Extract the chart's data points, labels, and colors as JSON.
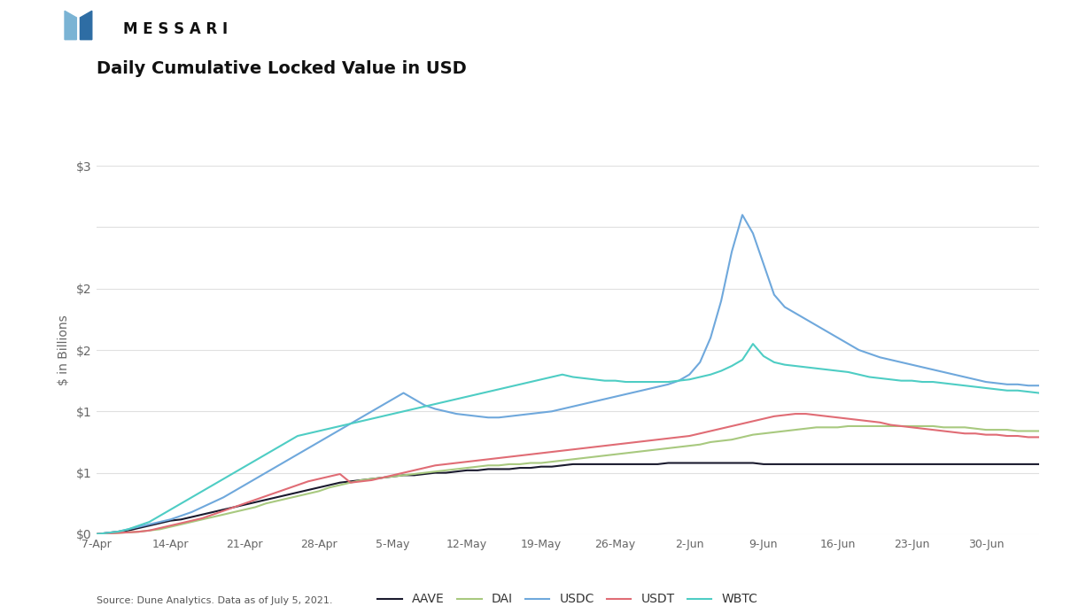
{
  "title": "Daily Cumulative Locked Value in USD",
  "ylabel": "$ in Billions",
  "source_text": "Source: Dune Analytics. Data as of July 5, 2021.",
  "messari_text": "M E S S A R I",
  "x_labels": [
    "7-Apr",
    "14-Apr",
    "21-Apr",
    "28-Apr",
    "5-May",
    "12-May",
    "19-May",
    "26-May",
    "2-Jun",
    "9-Jun",
    "16-Jun",
    "23-Jun",
    "30-Jun"
  ],
  "x_tick_positions": [
    0,
    7,
    14,
    21,
    28,
    35,
    42,
    49,
    56,
    63,
    70,
    77,
    84
  ],
  "colors": {
    "AAVE": "#1a1a2e",
    "DAI": "#a8c97f",
    "USDC": "#6fa8dc",
    "USDT": "#e06c75",
    "WBTC": "#4ecdc4"
  },
  "background_color": "#ffffff",
  "grid_color": "#e0e0e0",
  "ytick_vals": [
    0,
    0.5,
    1.0,
    1.5,
    2.0,
    2.5,
    3.0
  ],
  "ytick_labels": [
    "$0",
    "$1",
    "$1",
    "$2",
    "$2",
    "",
    "$3"
  ],
  "logo_color_light": "#7ab3d4",
  "logo_color_dark": "#2e6da4",
  "series": {
    "AAVE": [
      0.0,
      0.01,
      0.02,
      0.03,
      0.05,
      0.07,
      0.09,
      0.11,
      0.12,
      0.14,
      0.16,
      0.18,
      0.2,
      0.22,
      0.24,
      0.26,
      0.28,
      0.3,
      0.32,
      0.34,
      0.36,
      0.38,
      0.4,
      0.42,
      0.43,
      0.44,
      0.45,
      0.46,
      0.47,
      0.48,
      0.48,
      0.49,
      0.5,
      0.5,
      0.51,
      0.52,
      0.52,
      0.53,
      0.53,
      0.53,
      0.54,
      0.54,
      0.55,
      0.55,
      0.56,
      0.57,
      0.57,
      0.57,
      0.57,
      0.57,
      0.57,
      0.57,
      0.57,
      0.57,
      0.58,
      0.58,
      0.58,
      0.58,
      0.58,
      0.58,
      0.58,
      0.58,
      0.58,
      0.57,
      0.57,
      0.57,
      0.57,
      0.57,
      0.57,
      0.57,
      0.57,
      0.57,
      0.57,
      0.57,
      0.57,
      0.57,
      0.57,
      0.57,
      0.57,
      0.57,
      0.57,
      0.57,
      0.57,
      0.57,
      0.57,
      0.57,
      0.57,
      0.57,
      0.57,
      0.57
    ],
    "DAI": [
      0.0,
      0.005,
      0.01,
      0.015,
      0.02,
      0.03,
      0.04,
      0.06,
      0.08,
      0.1,
      0.12,
      0.14,
      0.16,
      0.18,
      0.2,
      0.22,
      0.25,
      0.27,
      0.29,
      0.31,
      0.33,
      0.35,
      0.38,
      0.4,
      0.42,
      0.44,
      0.45,
      0.46,
      0.47,
      0.48,
      0.49,
      0.5,
      0.51,
      0.52,
      0.53,
      0.54,
      0.55,
      0.56,
      0.56,
      0.57,
      0.57,
      0.58,
      0.58,
      0.59,
      0.6,
      0.61,
      0.62,
      0.63,
      0.64,
      0.65,
      0.66,
      0.67,
      0.68,
      0.69,
      0.7,
      0.71,
      0.72,
      0.73,
      0.75,
      0.76,
      0.77,
      0.79,
      0.81,
      0.82,
      0.83,
      0.84,
      0.85,
      0.86,
      0.87,
      0.87,
      0.87,
      0.88,
      0.88,
      0.88,
      0.88,
      0.88,
      0.88,
      0.88,
      0.88,
      0.88,
      0.87,
      0.87,
      0.87,
      0.86,
      0.85,
      0.85,
      0.85,
      0.84,
      0.84,
      0.84
    ],
    "USDC": [
      0.0,
      0.01,
      0.02,
      0.04,
      0.06,
      0.08,
      0.1,
      0.12,
      0.15,
      0.18,
      0.22,
      0.26,
      0.3,
      0.35,
      0.4,
      0.45,
      0.5,
      0.55,
      0.6,
      0.65,
      0.7,
      0.75,
      0.8,
      0.85,
      0.9,
      0.95,
      1.0,
      1.05,
      1.1,
      1.15,
      1.1,
      1.05,
      1.02,
      1.0,
      0.98,
      0.97,
      0.96,
      0.95,
      0.95,
      0.96,
      0.97,
      0.98,
      0.99,
      1.0,
      1.02,
      1.04,
      1.06,
      1.08,
      1.1,
      1.12,
      1.14,
      1.16,
      1.18,
      1.2,
      1.22,
      1.25,
      1.3,
      1.4,
      1.6,
      1.9,
      2.3,
      2.6,
      2.45,
      2.2,
      1.95,
      1.85,
      1.8,
      1.75,
      1.7,
      1.65,
      1.6,
      1.55,
      1.5,
      1.47,
      1.44,
      1.42,
      1.4,
      1.38,
      1.36,
      1.34,
      1.32,
      1.3,
      1.28,
      1.26,
      1.24,
      1.23,
      1.22,
      1.22,
      1.21,
      1.21
    ],
    "USDT": [
      0.0,
      0.005,
      0.01,
      0.015,
      0.02,
      0.03,
      0.05,
      0.07,
      0.09,
      0.11,
      0.13,
      0.16,
      0.19,
      0.22,
      0.25,
      0.28,
      0.31,
      0.34,
      0.37,
      0.4,
      0.43,
      0.45,
      0.47,
      0.49,
      0.42,
      0.43,
      0.44,
      0.46,
      0.48,
      0.5,
      0.52,
      0.54,
      0.56,
      0.57,
      0.58,
      0.59,
      0.6,
      0.61,
      0.62,
      0.63,
      0.64,
      0.65,
      0.66,
      0.67,
      0.68,
      0.69,
      0.7,
      0.71,
      0.72,
      0.73,
      0.74,
      0.75,
      0.76,
      0.77,
      0.78,
      0.79,
      0.8,
      0.82,
      0.84,
      0.86,
      0.88,
      0.9,
      0.92,
      0.94,
      0.96,
      0.97,
      0.98,
      0.98,
      0.97,
      0.96,
      0.95,
      0.94,
      0.93,
      0.92,
      0.91,
      0.89,
      0.88,
      0.87,
      0.86,
      0.85,
      0.84,
      0.83,
      0.82,
      0.82,
      0.81,
      0.81,
      0.8,
      0.8,
      0.79,
      0.79
    ],
    "WBTC": [
      0.0,
      0.01,
      0.02,
      0.04,
      0.07,
      0.1,
      0.15,
      0.2,
      0.25,
      0.3,
      0.35,
      0.4,
      0.45,
      0.5,
      0.55,
      0.6,
      0.65,
      0.7,
      0.75,
      0.8,
      0.82,
      0.84,
      0.86,
      0.88,
      0.9,
      0.92,
      0.94,
      0.96,
      0.98,
      1.0,
      1.02,
      1.04,
      1.06,
      1.08,
      1.1,
      1.12,
      1.14,
      1.16,
      1.18,
      1.2,
      1.22,
      1.24,
      1.26,
      1.28,
      1.3,
      1.28,
      1.27,
      1.26,
      1.25,
      1.25,
      1.24,
      1.24,
      1.24,
      1.24,
      1.24,
      1.25,
      1.26,
      1.28,
      1.3,
      1.33,
      1.37,
      1.42,
      1.55,
      1.45,
      1.4,
      1.38,
      1.37,
      1.36,
      1.35,
      1.34,
      1.33,
      1.32,
      1.3,
      1.28,
      1.27,
      1.26,
      1.25,
      1.25,
      1.24,
      1.24,
      1.23,
      1.22,
      1.21,
      1.2,
      1.19,
      1.18,
      1.17,
      1.17,
      1.16,
      1.15
    ]
  }
}
